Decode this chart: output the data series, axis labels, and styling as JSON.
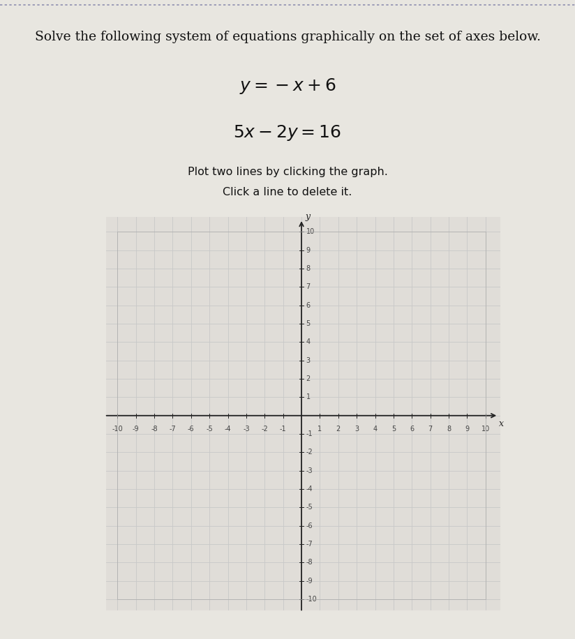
{
  "title_line1": "Solve the following system of equations graphically on the set of axes below.",
  "eq1_latex": "$y = -x + 6$",
  "eq2_latex": "$5x - 2y = 16$",
  "instruction1": "Plot two lines by clicking the graph.",
  "instruction2": "Click a line to delete it.",
  "xlim": [
    -10.6,
    10.8
  ],
  "ylim": [
    -10.6,
    10.8
  ],
  "axis_xlim": [
    -10,
    10
  ],
  "axis_ylim": [
    -10,
    10
  ],
  "bg_color": "#e0ddd8",
  "grid_color": "#c8c8c8",
  "plot_bg_color": "#e8e6e0",
  "page_bg_color": "#e8e6e0",
  "axis_color": "#222222",
  "tick_color": "#444444",
  "title_fontsize": 13.5,
  "eq_fontsize": 18,
  "instr_fontsize": 11.5,
  "tick_fontsize": 7,
  "xlabel": "x",
  "ylabel": "y",
  "dotted_border_color": "#9090b0"
}
